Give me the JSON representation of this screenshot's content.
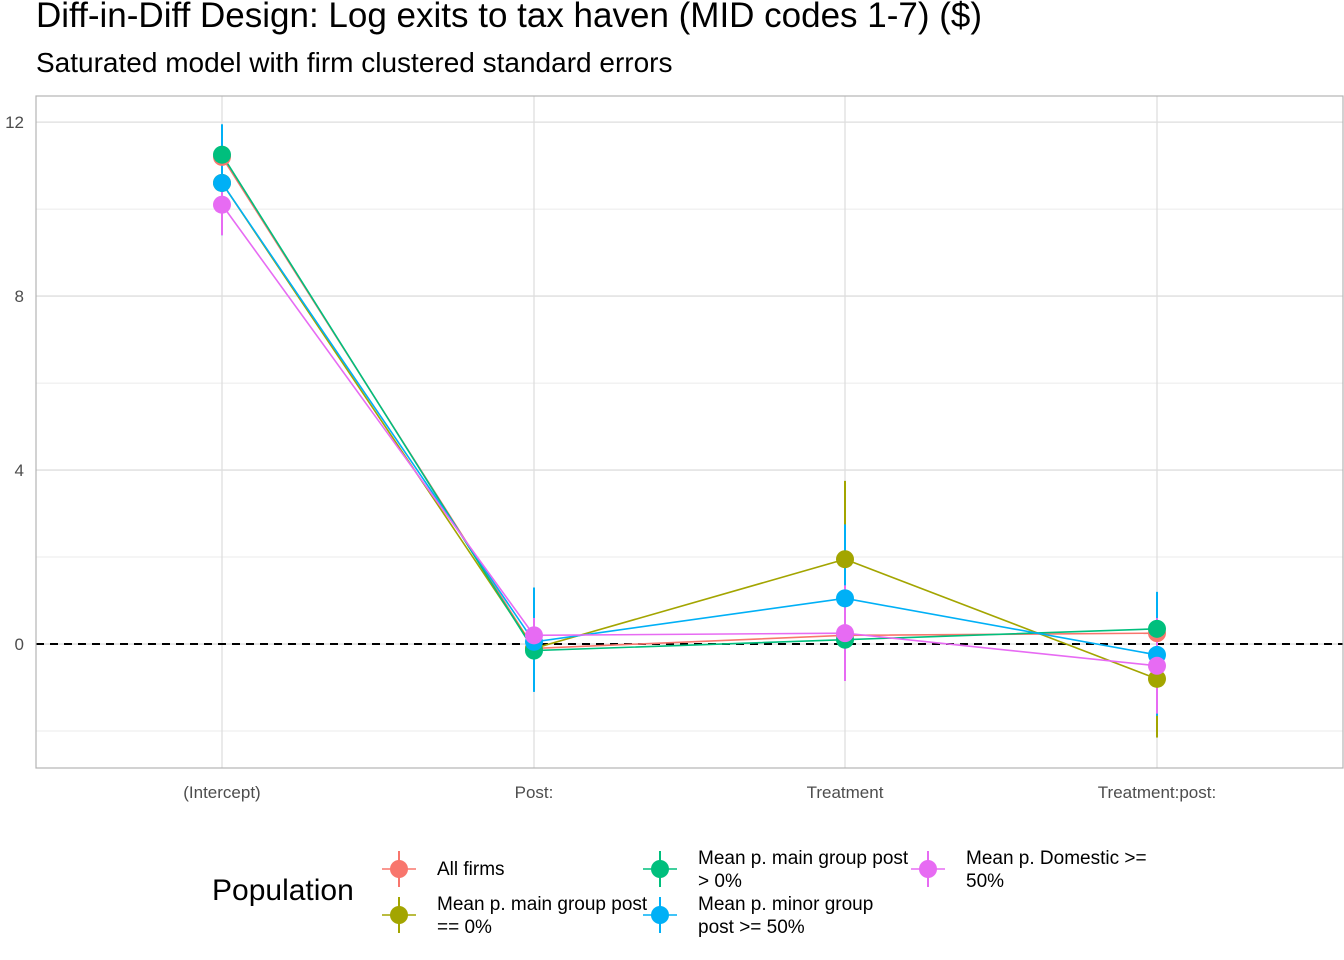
{
  "chart_data": {
    "type": "scatter",
    "title": "Diff-in-Diff Design: Log exits to tax haven (MID codes 1-7)  ($)",
    "subtitle": "Saturated model with firm clustered standard errors",
    "xlabel": "",
    "ylabel": "",
    "categories": [
      "(Intercept)",
      "Post:",
      "Treatment",
      "Treatment:post:"
    ],
    "y_ticks": [
      0,
      4,
      8,
      12
    ],
    "ylim": [
      -2.85,
      12.6
    ],
    "reference_line": {
      "y": 0,
      "style": "dashed"
    },
    "grid": true,
    "legend": {
      "title": "Population",
      "position": "bottom"
    },
    "series": [
      {
        "name": "All firms",
        "color": "#F8766D",
        "values": [
          11.2,
          -0.1,
          0.2,
          0.25
        ],
        "lower": [
          10.6,
          -0.3,
          -0.1,
          -0.1
        ],
        "upper": [
          11.8,
          0.1,
          0.5,
          0.6
        ]
      },
      {
        "name": "Mean p. main group post == 0%",
        "color": "#A3A500",
        "values": [
          10.6,
          -0.1,
          1.95,
          -0.8
        ],
        "lower": [
          10.0,
          -0.4,
          0.2,
          -2.15
        ],
        "upper": [
          11.2,
          0.2,
          3.75,
          0.55
        ]
      },
      {
        "name": "Mean p. main group post > 0%",
        "color": "#00BF7D",
        "values": [
          11.25,
          -0.15,
          0.1,
          0.35
        ],
        "lower": [
          10.6,
          -0.4,
          -0.2,
          0.0
        ],
        "upper": [
          11.9,
          0.1,
          0.4,
          0.7
        ]
      },
      {
        "name": "Mean p. minor group post >= 50%",
        "color": "#00B0F6",
        "values": [
          10.6,
          0.05,
          1.05,
          -0.25
        ],
        "lower": [
          9.4,
          -1.1,
          -0.6,
          -1.65
        ],
        "upper": [
          11.95,
          1.3,
          2.75,
          1.2
        ]
      },
      {
        "name": "Mean p. Domestic >= 50%",
        "color": "#E76BF3",
        "values": [
          10.1,
          0.2,
          0.25,
          -0.5
        ],
        "lower": [
          9.4,
          -0.2,
          -0.85,
          -1.6
        ],
        "upper": [
          10.8,
          0.6,
          1.35,
          0.6
        ]
      }
    ]
  }
}
